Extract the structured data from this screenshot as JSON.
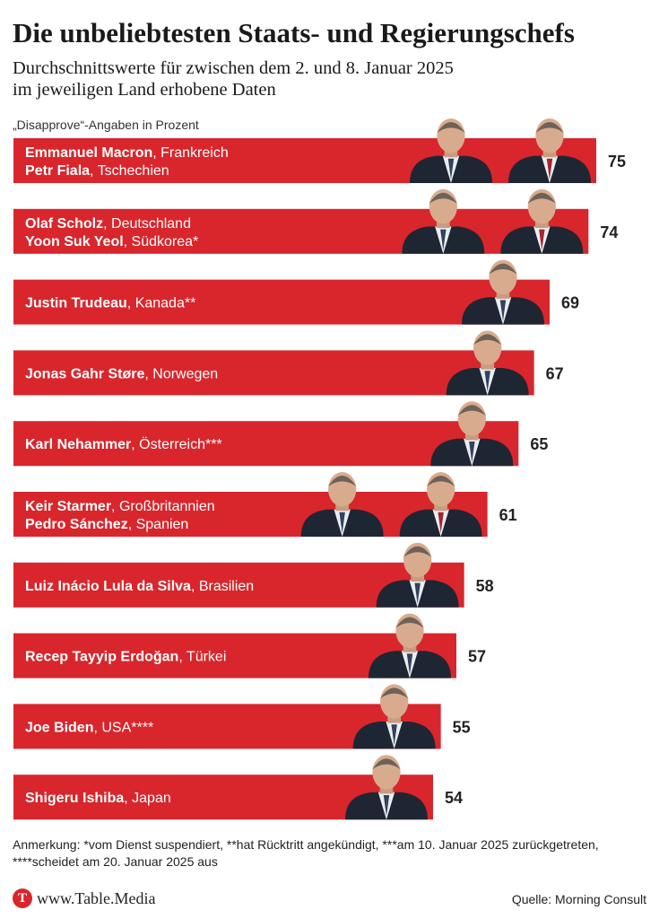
{
  "header": {
    "title": "Die unbeliebtesten Staats- und Regierungschefs",
    "subtitle_line1": "Durchschnittswerte für zwischen dem 2. und 8. Januar 2025",
    "subtitle_line2": "im jeweiligen Land erhobene Daten",
    "unit_label": "„Disapprove“-Angaben in Prozent"
  },
  "colors": {
    "bar": "#d8262c",
    "bar_dark": "#b81d22",
    "photo_bg": "#2a3140"
  },
  "chart_data": {
    "type": "bar",
    "orientation": "horizontal",
    "title": "Die unbeliebtesten Staats- und Regierungschefs",
    "unit": "„Disapprove“-Angaben in Prozent",
    "xlim": [
      0,
      75
    ],
    "grid": false,
    "bars": [
      {
        "value": 75,
        "leaders": [
          {
            "name": "Emmanuel Macron",
            "country": ", Frankreich"
          },
          {
            "name": "Petr Fiala",
            "country": ", Tschechien"
          }
        ],
        "photos": [
          "leader-photo-macron",
          "leader-photo-fiala"
        ]
      },
      {
        "value": 74,
        "leaders": [
          {
            "name": "Olaf Scholz",
            "country": ", Deutschland"
          },
          {
            "name": "Yoon Suk Yeol",
            "country": ", Südkorea*"
          }
        ],
        "photos": [
          "leader-photo-scholz",
          "leader-photo-yoon"
        ]
      },
      {
        "value": 69,
        "leaders": [
          {
            "name": "Justin Trudeau",
            "country": ", Kanada**"
          }
        ],
        "photos": [
          "leader-photo-trudeau"
        ]
      },
      {
        "value": 67,
        "leaders": [
          {
            "name": "Jonas Gahr Støre",
            "country": ", Norwegen"
          }
        ],
        "photos": [
          "leader-photo-store"
        ]
      },
      {
        "value": 65,
        "leaders": [
          {
            "name": "Karl Nehammer",
            "country": ", Österreich***"
          }
        ],
        "photos": [
          "leader-photo-nehammer"
        ]
      },
      {
        "value": 61,
        "leaders": [
          {
            "name": "Keir Starmer",
            "country": ", Großbritannien"
          },
          {
            "name": "Pedro Sánchez",
            "country": ", Spanien"
          }
        ],
        "photos": [
          "leader-photo-starmer",
          "leader-photo-sanchez"
        ]
      },
      {
        "value": 58,
        "leaders": [
          {
            "name": "Luiz Inácio Lula da Silva",
            "country": ", Brasilien"
          }
        ],
        "photos": [
          "leader-photo-lula"
        ]
      },
      {
        "value": 57,
        "leaders": [
          {
            "name": "Recep Tayyip Erdoğan",
            "country": ", Türkei"
          }
        ],
        "photos": [
          "leader-photo-erdogan"
        ]
      },
      {
        "value": 55,
        "leaders": [
          {
            "name": "Joe Biden",
            "country": ", USA****"
          }
        ],
        "photos": [
          "leader-photo-biden"
        ]
      },
      {
        "value": 54,
        "leaders": [
          {
            "name": "Shigeru Ishiba",
            "country": ", Japan"
          }
        ],
        "photos": [
          "leader-photo-ishiba"
        ]
      }
    ]
  },
  "footer": {
    "note_line1": "Anmerkung: *vom Dienst suspendiert, **hat Rücktritt angekündigt, ***am 10. Januar 2025 zurückgetreten,",
    "note_line2": "****scheidet am 20. Januar 2025 aus",
    "logo_letter": "T",
    "logo_text": "www.Table.Media",
    "source": "Quelle: Morning Consult"
  }
}
